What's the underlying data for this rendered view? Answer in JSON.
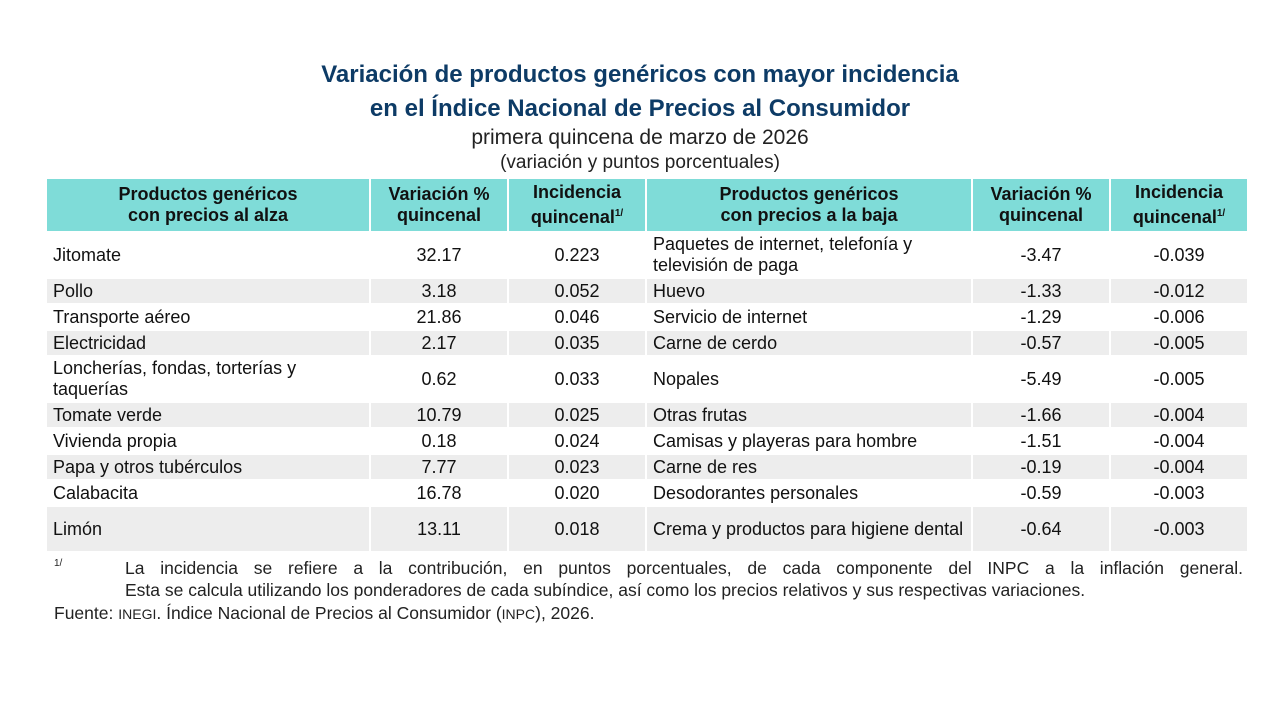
{
  "header": {
    "title_line1": "Variación de productos genéricos con mayor incidencia",
    "title_line2": "en el Índice Nacional de Precios al Consumidor",
    "subtitle": "primera quincena de marzo de 2026",
    "units": "(variación y puntos porcentuales)"
  },
  "colors": {
    "header_bg": "#7fdcd8",
    "title": "#0d3b66",
    "stripe": "#ededed"
  },
  "table": {
    "columns": [
      {
        "line1": "Productos genéricos",
        "line2": "con precios al alza"
      },
      {
        "line1": "Variación %",
        "line2": "quincenal"
      },
      {
        "line1": "Incidencia",
        "line2": "quincenal",
        "sup": "1/"
      },
      {
        "line1": "Productos genéricos",
        "line2": "con precios a la baja"
      },
      {
        "line1": "Variación %",
        "line2": "quincenal"
      },
      {
        "line1": "Incidencia",
        "line2": "quincenal",
        "sup": "1/"
      }
    ],
    "rows": [
      {
        "up": "Jitomate",
        "up_var": "32.17",
        "up_inc": "0.223",
        "down": "Paquetes de internet, telefonía y televisión de paga",
        "down_var": "-3.47",
        "down_inc": "-0.039"
      },
      {
        "up": "Pollo",
        "up_var": "3.18",
        "up_inc": "0.052",
        "down": "Huevo",
        "down_var": "-1.33",
        "down_inc": "-0.012"
      },
      {
        "up": "Transporte aéreo",
        "up_var": "21.86",
        "up_inc": "0.046",
        "down": "Servicio de internet",
        "down_var": "-1.29",
        "down_inc": "-0.006"
      },
      {
        "up": "Electricidad",
        "up_var": "2.17",
        "up_inc": "0.035",
        "down": "Carne de cerdo",
        "down_var": "-0.57",
        "down_inc": "-0.005"
      },
      {
        "up": "Loncherías, fondas, torterías y taquerías",
        "up_var": "0.62",
        "up_inc": "0.033",
        "down": "Nopales",
        "down_var": "-5.49",
        "down_inc": "-0.005"
      },
      {
        "up": "Tomate verde",
        "up_var": "10.79",
        "up_inc": "0.025",
        "down": "Otras frutas",
        "down_var": "-1.66",
        "down_inc": "-0.004"
      },
      {
        "up": "Vivienda propia",
        "up_var": "0.18",
        "up_inc": "0.024",
        "down": "Camisas y playeras para hombre",
        "down_var": "-1.51",
        "down_inc": "-0.004"
      },
      {
        "up": "Papa y otros tubérculos",
        "up_var": "7.77",
        "up_inc": "0.023",
        "down": "Carne de res",
        "down_var": "-0.19",
        "down_inc": "-0.004"
      },
      {
        "up": "Calabacita",
        "up_var": "16.78",
        "up_inc": "0.020",
        "down": "Desodorantes personales",
        "down_var": "-0.59",
        "down_inc": "-0.003"
      },
      {
        "up": "Limón",
        "up_var": "13.11",
        "up_inc": "0.018",
        "down": "Crema y productos para higiene dental",
        "down_var": "-0.64",
        "down_inc": "-0.003"
      }
    ]
  },
  "footnote": {
    "mark": "1/",
    "line1": "La incidencia se refiere a la contribución, en puntos porcentuales, de cada componente del INPC a la inflación general.",
    "line2": "Esta se calcula utilizando los ponderadores de cada subíndice, así como los precios relativos y sus respectivas variaciones."
  },
  "source": {
    "label": "Fuente:",
    "org": "INEGI",
    "text": ". Índice Nacional de Precios al Consumidor (",
    "abbr": "INPC",
    "tail": "), 2026."
  }
}
